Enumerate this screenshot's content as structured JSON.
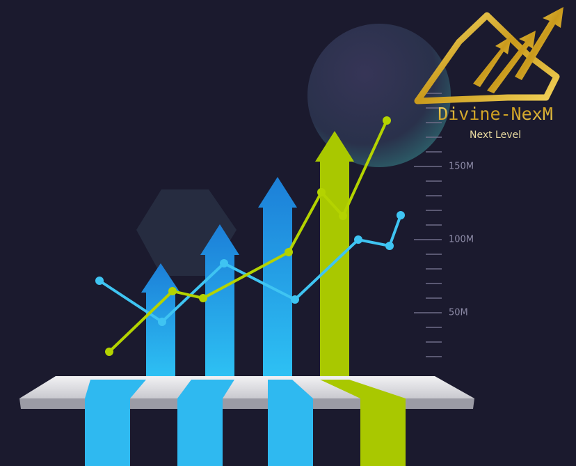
{
  "logo": {
    "title": "Divine-NexM",
    "tagline": "Next Level"
  },
  "scale": {
    "labels": [
      "150M",
      "100M",
      "50M"
    ]
  }
}
